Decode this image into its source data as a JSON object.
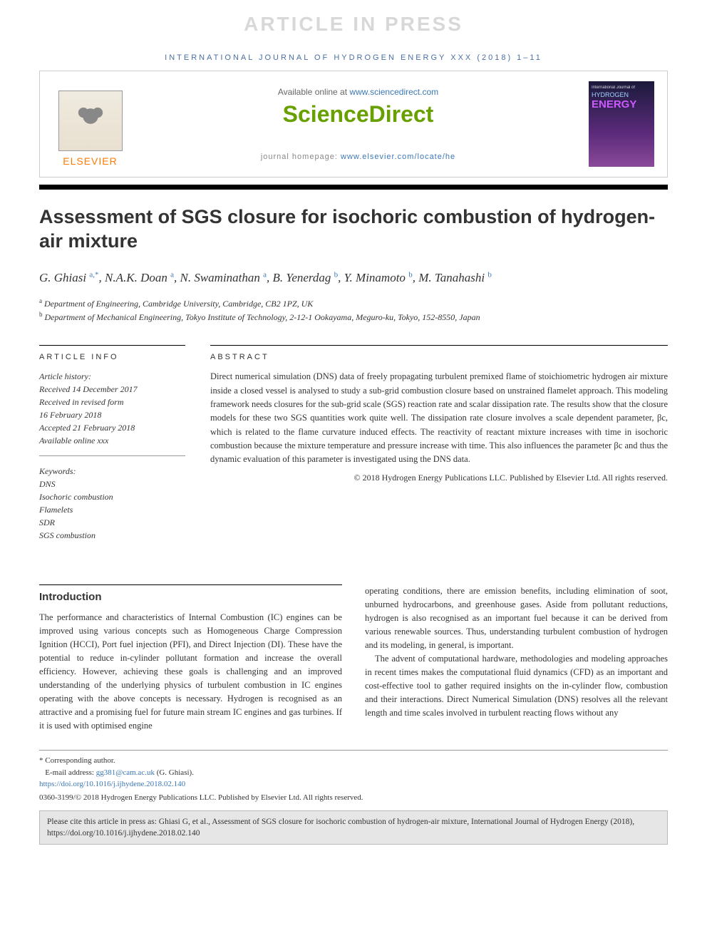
{
  "watermark": "ARTICLE IN PRESS",
  "journalHeader": "INTERNATIONAL JOURNAL OF HYDROGEN ENERGY XXX (2018) 1–11",
  "topBox": {
    "availablePrefix": "Available online at ",
    "availableLink": "www.sciencedirect.com",
    "sdLogo": "ScienceDirect",
    "homepagePrefix": "journal homepage: ",
    "homepageLink": "www.elsevier.com/locate/he",
    "elsevierText": "ELSEVIER",
    "coverSmall": "International Journal of",
    "coverHydrogen": "HYDROGEN",
    "coverEnergy": "ENERGY"
  },
  "title": "Assessment of SGS closure for isochoric combustion of hydrogen-air mixture",
  "authors": [
    {
      "name": "G. Ghiasi",
      "marks": "a,*"
    },
    {
      "name": "N.A.K. Doan",
      "marks": "a"
    },
    {
      "name": "N. Swaminathan",
      "marks": "a"
    },
    {
      "name": "B. Yenerdag",
      "marks": "b"
    },
    {
      "name": "Y. Minamoto",
      "marks": "b"
    },
    {
      "name": "M. Tanahashi",
      "marks": "b"
    }
  ],
  "affiliations": [
    {
      "mark": "a",
      "text": "Department of Engineering, Cambridge University, Cambridge, CB2 1PZ, UK"
    },
    {
      "mark": "b",
      "text": "Department of Mechanical Engineering, Tokyo Institute of Technology, 2-12-1 Ookayama, Meguro-ku, Tokyo, 152-8550, Japan"
    }
  ],
  "articleInfo": {
    "heading": "ARTICLE INFO",
    "historyLabel": "Article history:",
    "history": [
      "Received 14 December 2017",
      "Received in revised form",
      "16 February 2018",
      "Accepted 21 February 2018",
      "Available online xxx"
    ],
    "keywordsLabel": "Keywords:",
    "keywords": [
      "DNS",
      "Isochoric combustion",
      "Flamelets",
      "SDR",
      "SGS combustion"
    ]
  },
  "abstract": {
    "heading": "ABSTRACT",
    "text": "Direct numerical simulation (DNS) data of freely propagating turbulent premixed flame of stoichiometric hydrogen air mixture inside a closed vessel is analysed to study a sub-grid combustion closure based on unstrained flamelet approach. This modeling framework needs closures for the sub-grid scale (SGS) reaction rate and scalar dissipation rate. The results show that the closure models for these two SGS quantities work quite well. The dissipation rate closure involves a scale dependent parameter, βc, which is related to the flame curvature induced effects. The reactivity of reactant mixture increases with time in isochoric combustion because the mixture temperature and pressure increase with time. This also influences the parameter βc and thus the dynamic evaluation of this parameter is investigated using the DNS data.",
    "copyright": "© 2018 Hydrogen Energy Publications LLC. Published by Elsevier Ltd. All rights reserved."
  },
  "introduction": {
    "heading": "Introduction",
    "col1": "The performance and characteristics of Internal Combustion (IC) engines can be improved using various concepts such as Homogeneous Charge Compression Ignition (HCCI), Port fuel injection (PFI), and Direct Injection (DI). These have the potential to reduce in-cylinder pollutant formation and increase the overall efficiency. However, achieving these goals is challenging and an improved understanding of the underlying physics of turbulent combustion in IC engines operating with the above concepts is necessary. Hydrogen is recognised as an attractive and a promising fuel for future main stream IC engines and gas turbines. If it is used with optimised engine",
    "col2p1": "operating conditions, there are emission benefits, including elimination of soot, unburned hydrocarbons, and greenhouse gases. Aside from pollutant reductions, hydrogen is also recognised as an important fuel because it can be derived from various renewable sources. Thus, understanding turbulent combustion of hydrogen and its modeling, in general, is important.",
    "col2p2": "The advent of computational hardware, methodologies and modeling approaches in recent times makes the computational fluid dynamics (CFD) as an important and cost-effective tool to gather required insights on the in-cylinder flow, combustion and their interactions. Direct Numerical Simulation (DNS) resolves all the relevant length and time scales involved in turbulent reacting flows without any"
  },
  "footnotes": {
    "corresponding": "* Corresponding author.",
    "emailLabel": "E-mail address: ",
    "email": "gg381@cam.ac.uk",
    "emailSuffix": " (G. Ghiasi).",
    "doi": "https://doi.org/10.1016/j.ijhydene.2018.02.140",
    "issn": "0360-3199/© 2018 Hydrogen Energy Publications LLC. Published by Elsevier Ltd. All rights reserved."
  },
  "citeBox": "Please cite this article in press as: Ghiasi G, et al., Assessment of SGS closure for isochoric combustion of hydrogen-air mixture, International Journal of Hydrogen Energy (2018), https://doi.org/10.1016/j.ijhydene.2018.02.140"
}
